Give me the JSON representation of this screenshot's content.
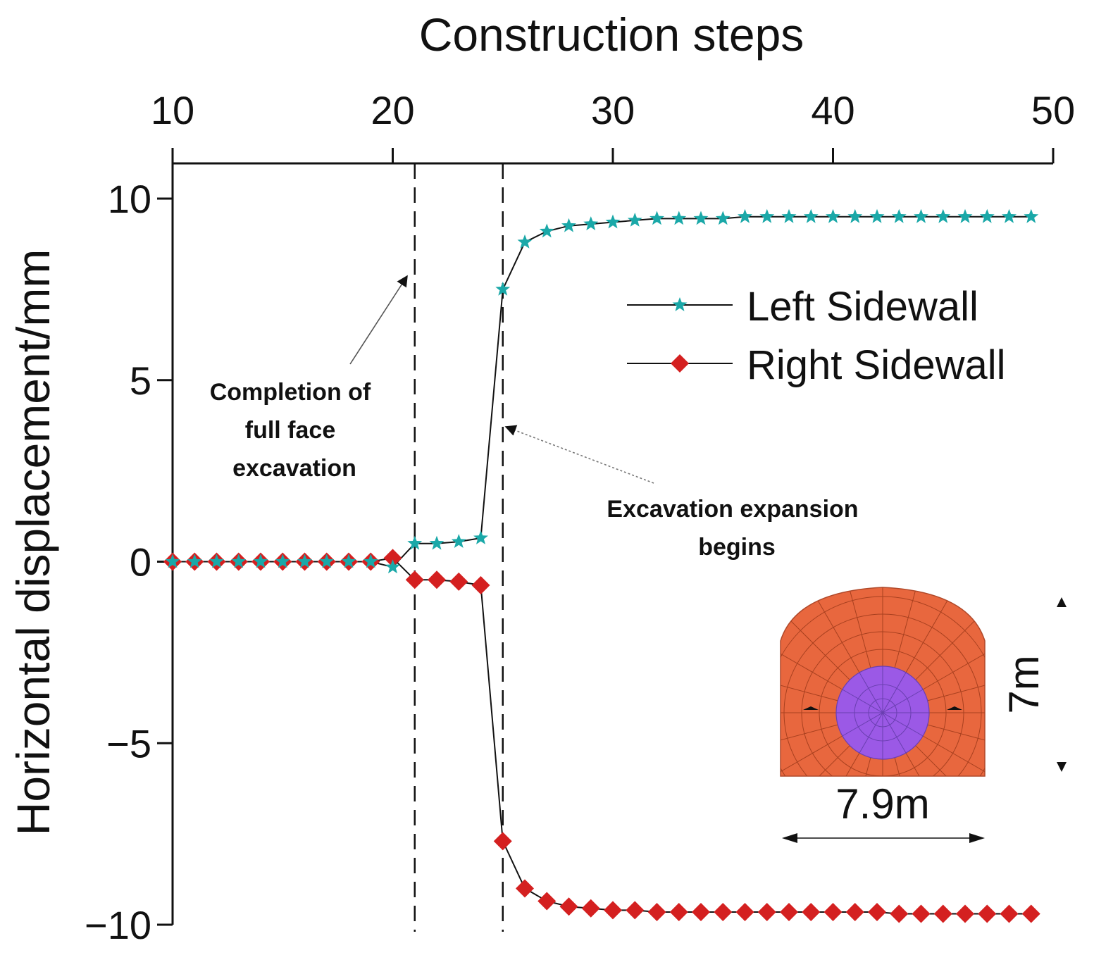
{
  "chart_data": {
    "type": "line",
    "xlabel": "Construction steps",
    "ylabel": "Horizontal displacement/mm",
    "xlim": [
      10,
      50
    ],
    "ylim": [
      -10,
      11
    ],
    "x_axis_position": "top",
    "xticks": [
      "10",
      "20",
      "30",
      "40",
      "50"
    ],
    "yticks": [
      "10",
      "5",
      "0",
      "−5",
      "−10"
    ],
    "grid": false,
    "legend_position": "right",
    "series": [
      {
        "name": "Left Sidewall",
        "marker": "star",
        "color": "#1aa8a8",
        "x": [
          10,
          11,
          12,
          13,
          14,
          15,
          16,
          17,
          18,
          19,
          20,
          21,
          22,
          23,
          24,
          25,
          26,
          27,
          28,
          29,
          30,
          31,
          32,
          33,
          34,
          35,
          36,
          37,
          38,
          39,
          40,
          41,
          42,
          43,
          44,
          45,
          46,
          47,
          48,
          49
        ],
        "values": [
          0,
          0,
          0,
          0,
          0,
          0,
          0,
          0,
          0,
          0,
          -0.15,
          0.5,
          0.5,
          0.55,
          0.65,
          7.5,
          8.8,
          9.1,
          9.25,
          9.3,
          9.35,
          9.4,
          9.45,
          9.45,
          9.45,
          9.45,
          9.5,
          9.5,
          9.5,
          9.5,
          9.5,
          9.5,
          9.5,
          9.5,
          9.5,
          9.5,
          9.5,
          9.5,
          9.5,
          9.5
        ]
      },
      {
        "name": "Right Sidewall",
        "marker": "diamond",
        "color": "#d42020",
        "x": [
          10,
          11,
          12,
          13,
          14,
          15,
          16,
          17,
          18,
          19,
          20,
          21,
          22,
          23,
          24,
          25,
          26,
          27,
          28,
          29,
          30,
          31,
          32,
          33,
          34,
          35,
          36,
          37,
          38,
          39,
          40,
          41,
          42,
          43,
          44,
          45,
          46,
          47,
          48,
          49
        ],
        "values": [
          0,
          0,
          0,
          0,
          0,
          0,
          0,
          0,
          0,
          0,
          0.1,
          -0.5,
          -0.5,
          -0.55,
          -0.65,
          -7.7,
          -9.0,
          -9.35,
          -9.5,
          -9.55,
          -9.6,
          -9.6,
          -9.65,
          -9.65,
          -9.65,
          -9.65,
          -9.65,
          -9.65,
          -9.65,
          -9.65,
          -9.65,
          -9.65,
          -9.65,
          -9.7,
          -9.7,
          -9.7,
          -9.7,
          -9.7,
          -9.7,
          -9.7
        ]
      }
    ],
    "reference_lines": [
      21,
      25
    ],
    "annotations": [
      {
        "text_lines": [
          "Completion of",
          "full face",
          "excavation"
        ],
        "points_to_x": 21
      },
      {
        "text_lines": [
          "Excavation expansion",
          "begins"
        ],
        "points_to_x": 25
      }
    ],
    "inset": {
      "width_label": "7.9m",
      "height_label": "7m",
      "outer_color": "#e8673e",
      "inner_color": "#9b59e6"
    }
  }
}
